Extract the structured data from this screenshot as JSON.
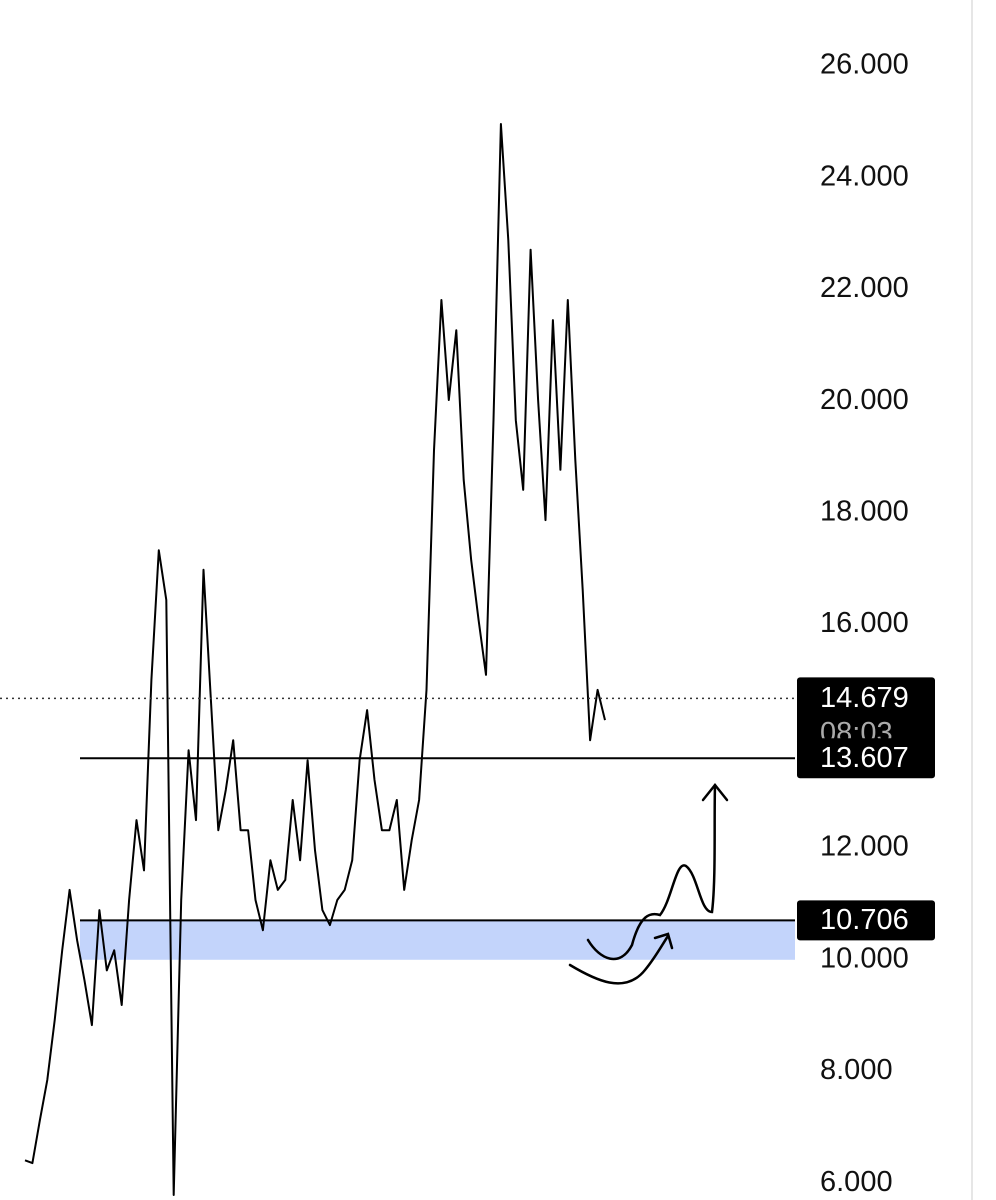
{
  "chart_data": {
    "type": "line",
    "color": "#000000",
    "values": [
      6.41,
      6.36,
      7.13,
      7.85,
      8.92,
      10.17,
      11.25,
      10.35,
      9.63,
      8.83,
      10.89,
      9.81,
      10.17,
      9.19,
      11.07,
      12.5,
      11.6,
      15.01,
      17.33,
      16.44,
      5.79,
      11.07,
      13.75,
      12.5,
      16.98,
      14.65,
      12.32,
      13.04,
      13.93,
      12.32,
      12.32,
      11.07,
      10.53,
      11.78,
      11.25,
      11.43,
      12.86,
      11.78,
      13.57,
      11.96,
      10.89,
      10.62,
      11.07,
      11.25,
      11.78,
      13.57,
      14.47,
      13.22,
      12.32,
      12.32,
      12.86,
      11.25,
      12.14,
      12.86,
      14.83,
      19.12,
      21.81,
      20.02,
      21.27,
      18.59,
      17.15,
      16.08,
      15.1,
      19.66,
      24.96,
      22.88,
      19.66,
      18.41,
      22.71,
      20.02,
      17.87,
      21.45,
      18.77,
      21.81,
      18.95,
      16.62,
      13.93,
      14.83,
      14.29
    ],
    "ylim": [
      5.7,
      27.18
    ],
    "yticks": [
      {
        "value": 26,
        "label": "26.000"
      },
      {
        "value": 24,
        "label": "24.000"
      },
      {
        "value": 22,
        "label": "22.000"
      },
      {
        "value": 20,
        "label": "20.000"
      },
      {
        "value": 18,
        "label": "18.000"
      },
      {
        "value": 16,
        "label": "16.000"
      },
      {
        "value": 12,
        "label": "12.000"
      },
      {
        "value": 10,
        "label": "10.000"
      },
      {
        "value": 8,
        "label": "8.000"
      },
      {
        "value": 6,
        "label": "6.000"
      }
    ],
    "last_price": {
      "value": 14.679,
      "timer": "08:03"
    },
    "levels": [
      13.607,
      10.706
    ],
    "zone_bottom": 10.0,
    "zone_color": "#c3d4fb"
  }
}
